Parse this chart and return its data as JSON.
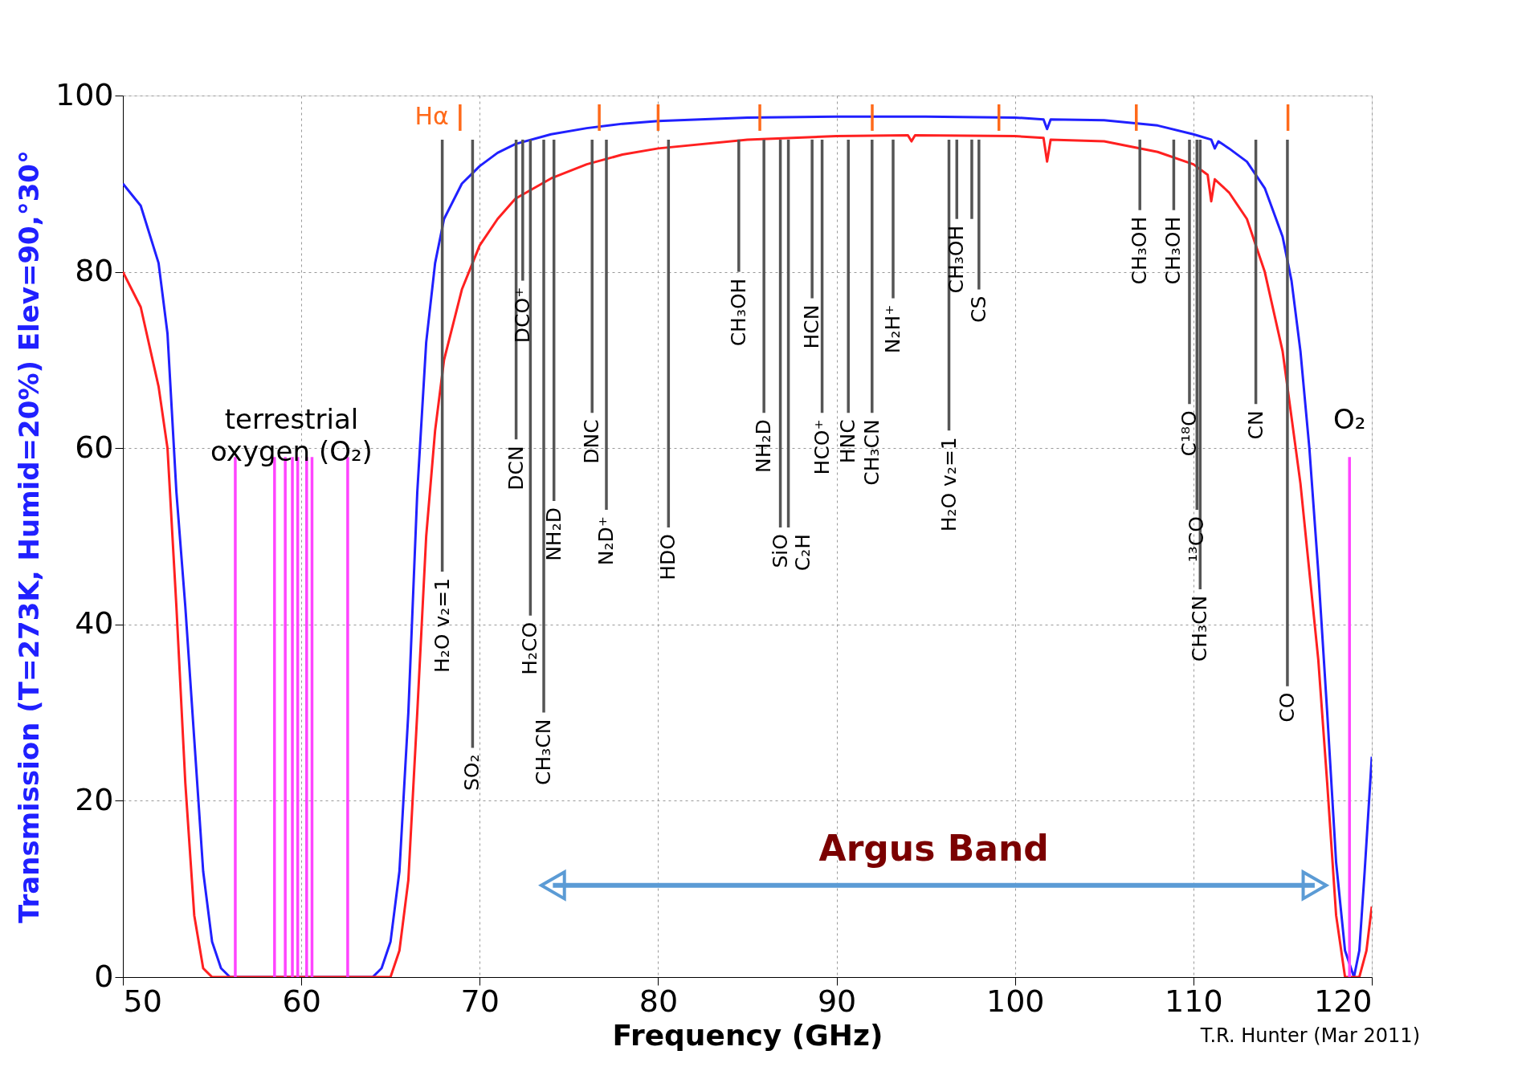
{
  "chart_data": {
    "type": "line",
    "xlabel": "Frequency (GHz)",
    "ylabel": "Transmission (T=273K, Humid=20%) Elev=90,°30°",
    "xlim": [
      50,
      120
    ],
    "ylim": [
      0,
      100
    ],
    "xticks": [
      50,
      60,
      70,
      80,
      90,
      100,
      110,
      120
    ],
    "yticks": [
      0,
      20,
      40,
      60,
      80,
      100
    ],
    "grid": true,
    "series": [
      {
        "type": "line",
        "color": "#2020ff",
        "x": [
          50,
          51,
          52,
          52.5,
          53,
          53.5,
          54,
          54.5,
          55,
          55.5,
          56,
          64,
          64.5,
          65,
          65.5,
          66,
          66.5,
          67,
          67.5,
          68,
          69,
          70,
          71,
          72,
          74,
          76,
          78,
          80,
          85,
          90,
          95,
          100,
          101.6,
          101.8,
          102,
          105,
          108,
          110,
          111,
          111.2,
          111.4,
          112,
          113,
          114,
          115,
          115.5,
          116,
          116.5,
          117,
          117.5,
          118,
          118.5,
          119,
          119.3,
          119.6,
          120
        ],
        "values": [
          90,
          87.5,
          81,
          73,
          55,
          42,
          27,
          12,
          4,
          1,
          0,
          0,
          1,
          4,
          12,
          30,
          55,
          72,
          81,
          86,
          90,
          92,
          93.5,
          94.5,
          95.6,
          96.3,
          96.8,
          97.1,
          97.5,
          97.6,
          97.6,
          97.5,
          97.3,
          96.2,
          97.3,
          97.2,
          96.6,
          95.6,
          95,
          94,
          94.8,
          94,
          92.5,
          89.5,
          84,
          79,
          71,
          60,
          46,
          30,
          13,
          3,
          0,
          3,
          12,
          25
        ]
      },
      {
        "type": "line",
        "color": "#ff2020",
        "x": [
          50,
          51,
          52,
          52.5,
          53,
          53.5,
          54,
          54.5,
          55,
          65,
          65.5,
          66,
          66.5,
          67,
          67.5,
          68,
          69,
          70,
          71,
          72,
          74,
          76,
          78,
          80,
          85,
          90,
          94,
          94.2,
          94.4,
          100,
          101.6,
          101.8,
          102,
          105,
          108,
          110,
          110.8,
          111,
          111.2,
          112,
          113,
          114,
          115,
          116,
          117,
          117.5,
          118,
          118.5,
          119.3,
          119.7,
          120
        ],
        "values": [
          80,
          76,
          67,
          60,
          42,
          22,
          7,
          1,
          0,
          0,
          3,
          11,
          30,
          50,
          62,
          70,
          78,
          83,
          86,
          88.3,
          90.6,
          92.2,
          93.3,
          94,
          95,
          95.4,
          95.5,
          94.8,
          95.5,
          95.4,
          95.2,
          92.5,
          95,
          94.8,
          93.6,
          92.2,
          91,
          88,
          90.5,
          89,
          86,
          80,
          71,
          56,
          36,
          22,
          7,
          0,
          0,
          3,
          8
        ]
      },
      {
        "type": "bar",
        "color": "#555555",
        "x": [
          67.9,
          69.6,
          72.04,
          72.41,
          72.84,
          73.59,
          74.16,
          76.3,
          77.1,
          80.58,
          84.52,
          85.93,
          86.85,
          87.3,
          88.63,
          89.19,
          90.66,
          91.99,
          93.17,
          96.3,
          96.74,
          97.58,
          97.98,
          107.0,
          108.9,
          109.78,
          110.2,
          110.38,
          113.5,
          115.27
        ],
        "base": [
          46,
          26,
          61,
          79,
          41,
          30,
          54,
          64,
          53,
          51,
          80,
          64,
          51,
          51,
          77,
          64,
          64,
          64,
          77,
          62,
          86,
          86,
          78,
          87,
          87,
          65,
          53,
          44,
          65,
          33
        ],
        "values": [
          49,
          69,
          34,
          16,
          54,
          65,
          41,
          31,
          42,
          44,
          15,
          31,
          44,
          44,
          18,
          31,
          31,
          31,
          18,
          33,
          9,
          9,
          17,
          8,
          8,
          30,
          42,
          51,
          30,
          62
        ]
      },
      {
        "type": "bar",
        "name": "Hα",
        "color": "#ff6a1a",
        "x": [
          68.9,
          76.7,
          80.0,
          85.7,
          92.0,
          99.1,
          106.8,
          115.3
        ],
        "base": [
          96,
          96,
          96,
          96,
          96,
          96,
          96,
          96
        ],
        "values": [
          3,
          3,
          3,
          3,
          3,
          3,
          3,
          3
        ]
      },
      {
        "type": "bar",
        "name": "terrestrial\noxygen (O₂)",
        "color": "#ff44ff",
        "x": [
          56.3,
          58.5,
          59.1,
          59.5,
          59.8,
          60.3,
          60.6,
          62.6
        ],
        "base": [
          0,
          0,
          0,
          0,
          0,
          0,
          0,
          0
        ],
        "values": [
          59,
          59,
          59,
          59,
          59,
          59,
          59,
          59
        ]
      },
      {
        "type": "bar",
        "name": "O₂",
        "color": "#ff44ff",
        "x": [
          118.75
        ],
        "base": [
          0
        ],
        "values": [
          59
        ]
      },
      {
        "type": "line",
        "name": "Argus Band",
        "color": "#5b9bd5",
        "marker": "triangle",
        "x": [
          74.1,
          116.8
        ],
        "values": [
          10.4,
          10.4
        ]
      }
    ],
    "annotations": [
      {
        "text": "H₂O  v₂=1",
        "x": 67.9,
        "y": 46
      },
      {
        "text": "SO₂",
        "x": 69.6,
        "y": 26
      },
      {
        "text": "DCN",
        "x": 72.04,
        "y": 61
      },
      {
        "text": "DCO⁺",
        "x": 72.41,
        "y": 79
      },
      {
        "text": "H₂CO",
        "x": 72.84,
        "y": 41
      },
      {
        "text": "CH₃CN",
        "x": 73.59,
        "y": 30
      },
      {
        "text": "NH₂D",
        "x": 74.16,
        "y": 54
      },
      {
        "text": "DNC",
        "x": 76.3,
        "y": 64
      },
      {
        "text": "N₂D⁺",
        "x": 77.1,
        "y": 53
      },
      {
        "text": "HDO",
        "x": 80.58,
        "y": 51
      },
      {
        "text": "CH₃OH",
        "x": 84.52,
        "y": 80
      },
      {
        "text": "NH₂D",
        "x": 85.93,
        "y": 64
      },
      {
        "text": "SiO",
        "x": 86.85,
        "y": 51
      },
      {
        "text": "C₂H",
        "x": 87.3,
        "y": 51
      },
      {
        "text": "HCN",
        "x": 88.63,
        "y": 77
      },
      {
        "text": "HCO⁺",
        "x": 89.19,
        "y": 64
      },
      {
        "text": "HNC",
        "x": 90.66,
        "y": 64
      },
      {
        "text": "CH₃CN",
        "x": 91.99,
        "y": 64
      },
      {
        "text": "N₂H⁺",
        "x": 93.17,
        "y": 77
      },
      {
        "text": "H₂O  v₂=1",
        "x": 96.3,
        "y": 62
      },
      {
        "text": "CH₃OH",
        "x": 96.74,
        "y": 86
      },
      {
        "text": "CS",
        "x": 97.98,
        "y": 78
      },
      {
        "text": "CH₃OH",
        "x": 107.0,
        "y": 87
      },
      {
        "text": "CH₃OH",
        "x": 108.9,
        "y": 87
      },
      {
        "text": "C¹⁸O",
        "x": 109.78,
        "y": 65
      },
      {
        "text": "¹³CO",
        "x": 110.2,
        "y": 53
      },
      {
        "text": "CH₃CN",
        "x": 110.38,
        "y": 44
      },
      {
        "text": "CN",
        "x": 113.5,
        "y": 65
      },
      {
        "text": "CO",
        "x": 115.27,
        "y": 33
      },
      "T.R. Hunter (Mar 2011)"
    ]
  }
}
